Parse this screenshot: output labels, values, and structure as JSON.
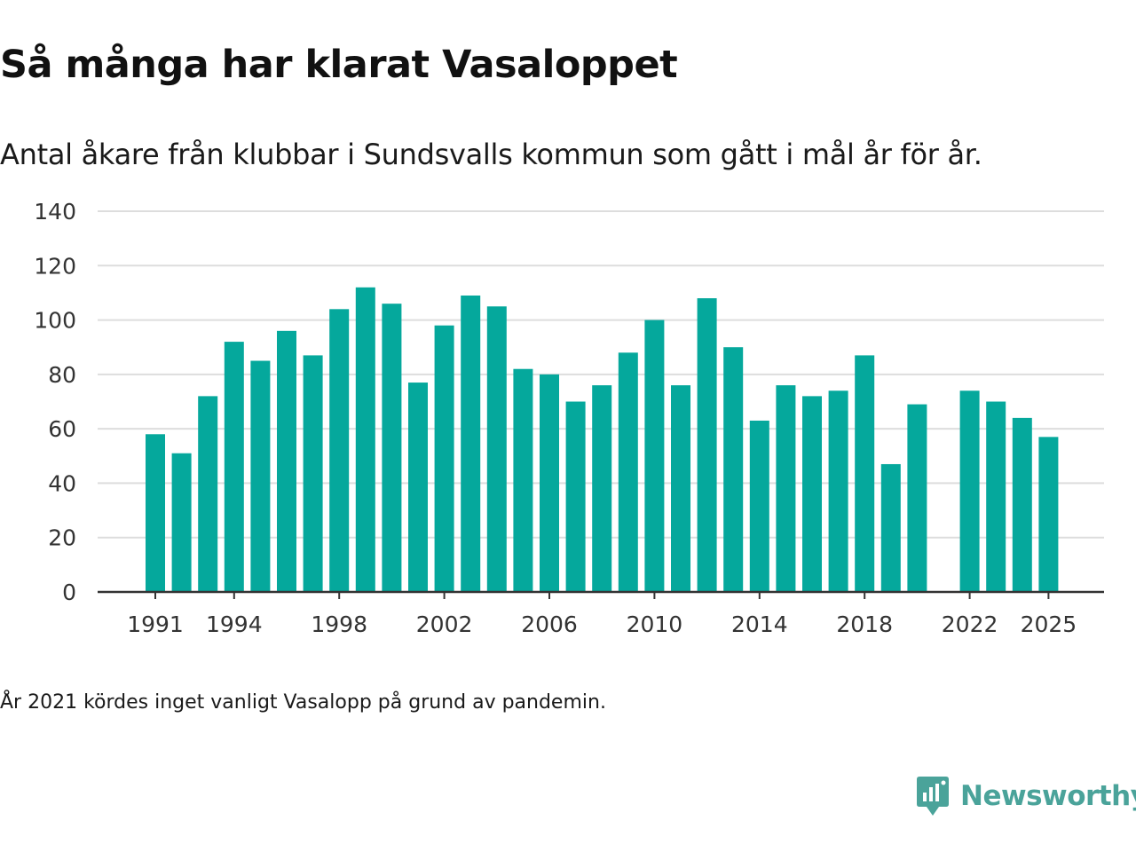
{
  "title": "Så många har klarat Vasaloppet",
  "subtitle": "Antal åkare från klubbar i Sundsvalls kommun som gått i mål år för år.",
  "note": "År 2021 kördes inget vanligt Vasalopp på grund av pandemin.",
  "brand": {
    "name": "Newsworthy",
    "icon": "newsworthy-chart-bubble-icon",
    "color": "#4aa39a"
  },
  "colors": {
    "bar": "#05a89c",
    "grid": "#dddddd",
    "axis": "#333333"
  },
  "chart_data": {
    "type": "bar",
    "title": "Så många har klarat Vasaloppet",
    "xlabel": "",
    "ylabel": "",
    "ylim": [
      0,
      140
    ],
    "yticks": [
      0,
      20,
      40,
      60,
      80,
      100,
      120,
      140
    ],
    "xticks": [
      "1991",
      "1994",
      "1998",
      "2002",
      "2006",
      "2010",
      "2014",
      "2018",
      "2022",
      "2025"
    ],
    "grid": true,
    "categories": [
      "1991",
      "1992",
      "1993",
      "1994",
      "1995",
      "1996",
      "1997",
      "1998",
      "1999",
      "2000",
      "2001",
      "2002",
      "2003",
      "2004",
      "2005",
      "2006",
      "2007",
      "2008",
      "2009",
      "2010",
      "2011",
      "2012",
      "2013",
      "2014",
      "2015",
      "2016",
      "2017",
      "2018",
      "2019",
      "2020",
      "2021",
      "2022",
      "2023",
      "2024",
      "2025"
    ],
    "values": [
      58,
      51,
      72,
      92,
      85,
      96,
      87,
      104,
      112,
      106,
      77,
      98,
      109,
      105,
      82,
      80,
      70,
      76,
      88,
      100,
      76,
      108,
      90,
      63,
      76,
      72,
      74,
      87,
      47,
      69,
      null,
      74,
      70,
      64,
      57
    ]
  }
}
